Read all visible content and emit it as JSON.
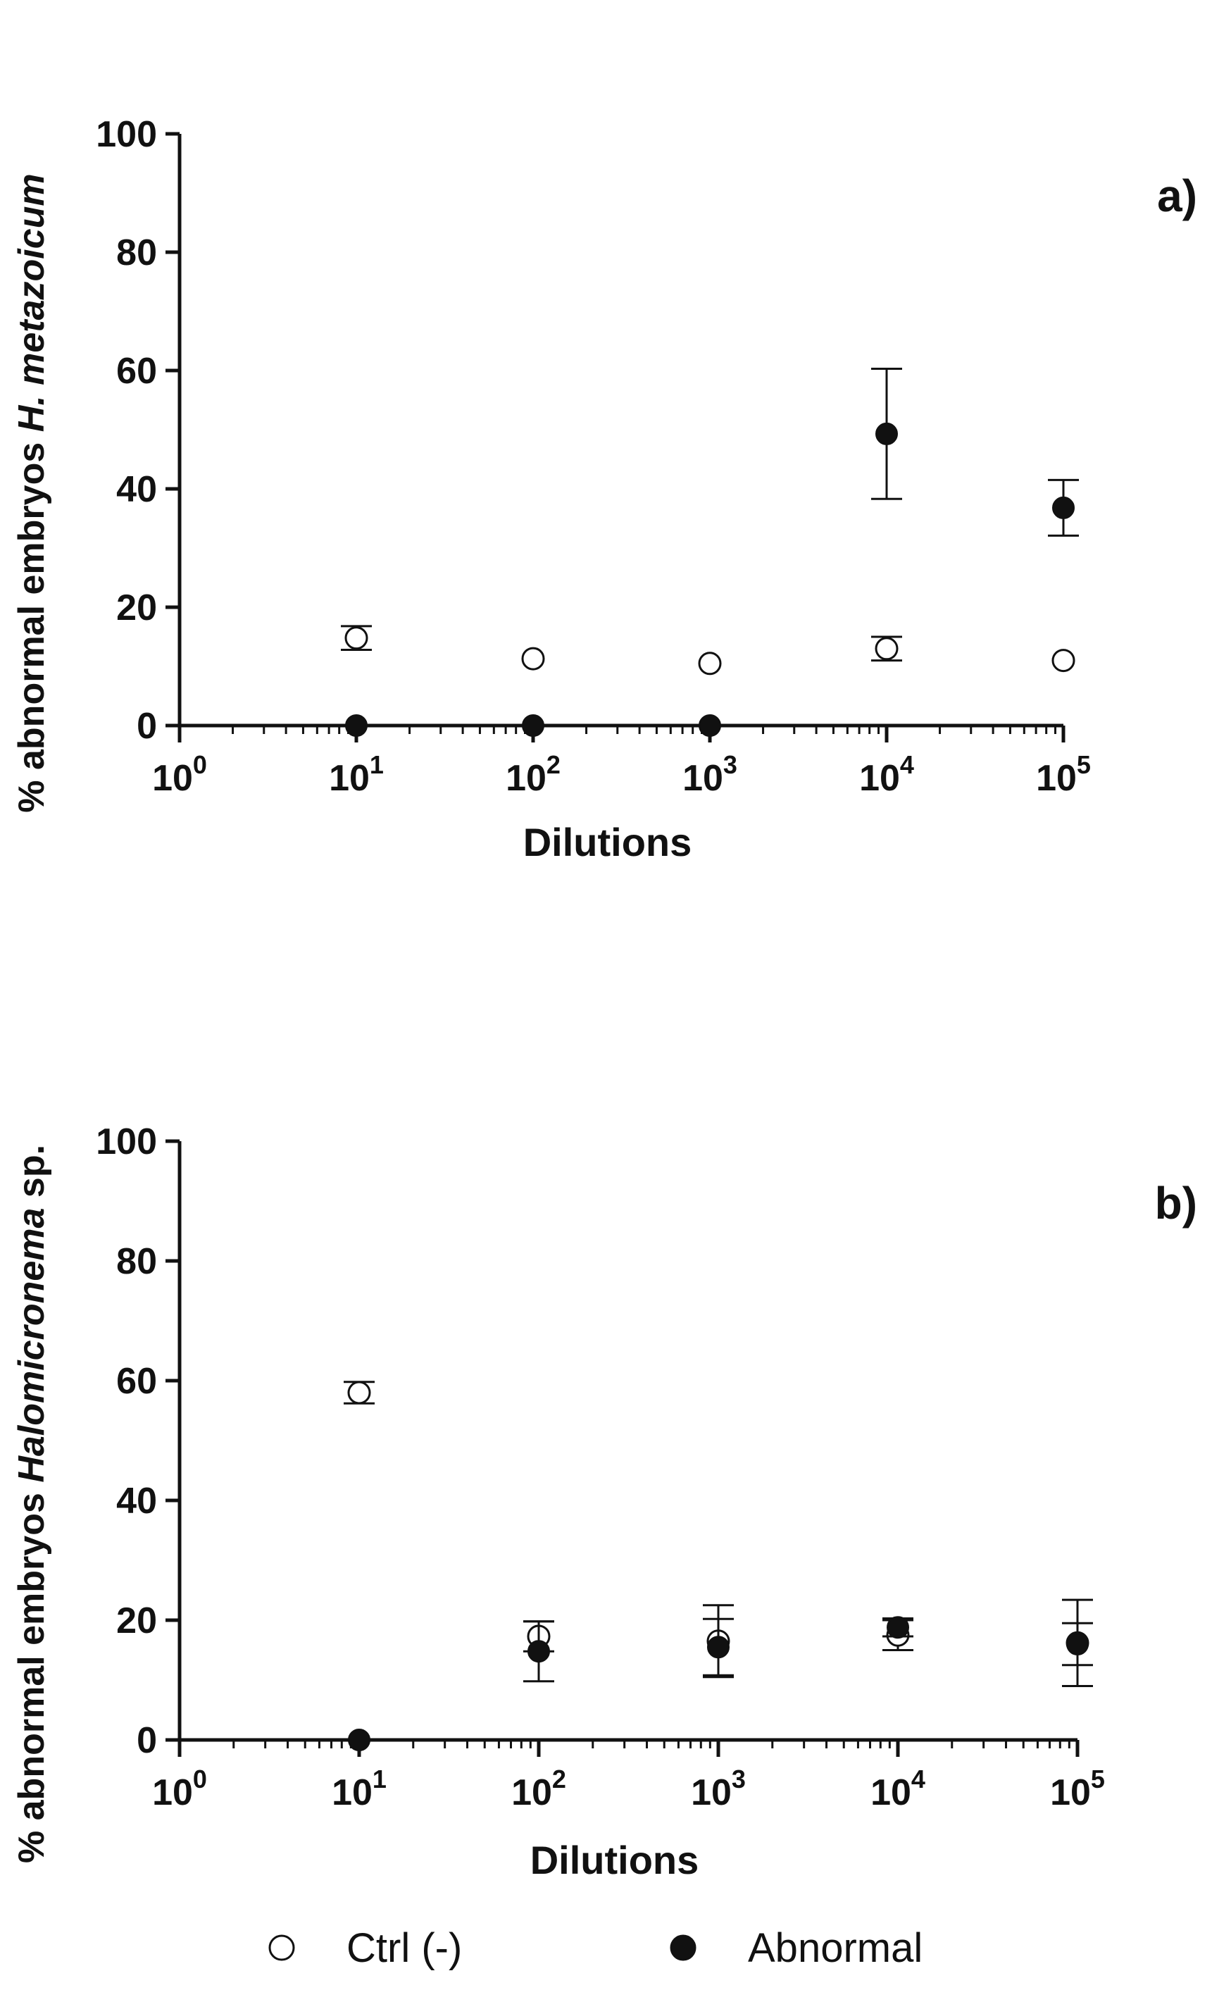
{
  "chart_data": [
    {
      "type": "scatter",
      "panel_label": "a)",
      "xlabel": "Dilutions",
      "ylabel_parts": [
        {
          "text": "% abnormal embryos ",
          "italic": false
        },
        {
          "text": "H. metazoicum",
          "italic": true
        }
      ],
      "x_scale": "log",
      "xlim": [
        1,
        100000
      ],
      "ylim": [
        0,
        100
      ],
      "y_ticks": [
        0,
        20,
        40,
        60,
        80,
        100
      ],
      "x_ticks": [
        {
          "value": 1,
          "base": "10",
          "exp": "0"
        },
        {
          "value": 10,
          "base": "10",
          "exp": "1"
        },
        {
          "value": 100,
          "base": "10",
          "exp": "2"
        },
        {
          "value": 1000,
          "base": "10",
          "exp": "3"
        },
        {
          "value": 10000,
          "base": "10",
          "exp": "4"
        },
        {
          "value": 100000,
          "base": "10",
          "exp": "5"
        }
      ],
      "series": [
        {
          "name": "Ctrl (-)",
          "marker": "open-circle",
          "points": [
            {
              "x": 10,
              "y": 14.8,
              "err": 2.0
            },
            {
              "x": 100,
              "y": 11.3,
              "err": 0
            },
            {
              "x": 1000,
              "y": 10.5,
              "err": 0
            },
            {
              "x": 10000,
              "y": 13.0,
              "err": 2.0
            },
            {
              "x": 100000,
              "y": 11.0,
              "err": 0
            }
          ]
        },
        {
          "name": "Abnormal",
          "marker": "filled-circle",
          "points": [
            {
              "x": 10,
              "y": 0,
              "err": 0
            },
            {
              "x": 100,
              "y": 0,
              "err": 0
            },
            {
              "x": 1000,
              "y": 0,
              "err": 0
            },
            {
              "x": 10000,
              "y": 49.3,
              "err": 11.0
            },
            {
              "x": 100000,
              "y": 36.8,
              "err": 4.7
            }
          ]
        }
      ]
    },
    {
      "type": "scatter",
      "panel_label": "b)",
      "xlabel": "Dilutions",
      "ylabel_parts": [
        {
          "text": "% abnormal embryos ",
          "italic": false
        },
        {
          "text": "Halomicronema",
          "italic": true
        },
        {
          "text": " sp.",
          "italic": false
        }
      ],
      "x_scale": "log",
      "xlim": [
        1,
        100000
      ],
      "ylim": [
        0,
        100
      ],
      "y_ticks": [
        0,
        20,
        40,
        60,
        80,
        100
      ],
      "x_ticks": [
        {
          "value": 1,
          "base": "10",
          "exp": "0"
        },
        {
          "value": 10,
          "base": "10",
          "exp": "1"
        },
        {
          "value": 100,
          "base": "10",
          "exp": "2"
        },
        {
          "value": 1000,
          "base": "10",
          "exp": "3"
        },
        {
          "value": 10000,
          "base": "10",
          "exp": "4"
        },
        {
          "value": 100000,
          "base": "10",
          "exp": "5"
        }
      ],
      "series": [
        {
          "name": "Ctrl (-)",
          "marker": "open-circle",
          "points": [
            {
              "x": 10,
              "y": 58.0,
              "err": 1.8
            },
            {
              "x": 100,
              "y": 17.3,
              "err": 2.5
            },
            {
              "x": 1000,
              "y": 16.5,
              "err": 6.0
            },
            {
              "x": 10000,
              "y": 17.5,
              "err": 2.5
            },
            {
              "x": 100000,
              "y": 16.2,
              "err": 7.2
            }
          ]
        },
        {
          "name": "Abnormal",
          "marker": "filled-circle",
          "points": [
            {
              "x": 10,
              "y": 0,
              "err": 0
            },
            {
              "x": 100,
              "y": 14.8,
              "err": 5.0
            },
            {
              "x": 1000,
              "y": 15.5,
              "err": 4.7
            },
            {
              "x": 10000,
              "y": 18.8,
              "err": 1.5
            },
            {
              "x": 100000,
              "y": 16.0,
              "err": 3.5
            }
          ]
        }
      ]
    }
  ],
  "legend": {
    "placement": "bottom",
    "items": [
      {
        "label": "Ctrl (-)",
        "marker": "open-circle"
      },
      {
        "label": "Abnormal",
        "marker": "filled-circle"
      }
    ]
  }
}
